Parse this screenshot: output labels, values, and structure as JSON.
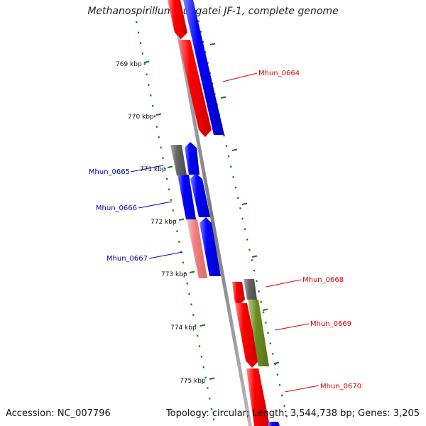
{
  "title": "Methanospirillum hungatei JF-1, complete genome",
  "accession": "Accession: NC_007796",
  "summary": "Topology: circular; Length: 3,544,738 bp; Genes: 3,205",
  "colors": {
    "forward": "#ff0000",
    "reverse": "#0000ff",
    "backbone": "#808080",
    "ruler": "#1a7a1a",
    "pseudo": "#f08080",
    "other": "#6b8e23",
    "gray_gene": "#666666"
  },
  "ruler_labels": [
    "769 kbp",
    "770 kbp",
    "771 kbp",
    "772 kbp",
    "773 kbp",
    "774 kbp",
    "775 kbp"
  ],
  "gene_labels": [
    {
      "id": "mhun_0664",
      "text": "Mhun_0664",
      "color": "#dd0000"
    },
    {
      "id": "mhun_0665",
      "text": "Mhun_0665",
      "color": "#0000bb"
    },
    {
      "id": "mhun_0666",
      "text": "Mhun_0666",
      "color": "#0000bb"
    },
    {
      "id": "mhun_0667",
      "text": "Mhun_0667",
      "color": "#0000bb"
    },
    {
      "id": "mhun_0668",
      "text": "Mhun_0668",
      "color": "#dd0000"
    },
    {
      "id": "mhun_0669",
      "text": "Mhun_0669",
      "color": "#dd0000"
    },
    {
      "id": "mhun_0670",
      "text": "Mhun_0670",
      "color": "#dd0000"
    }
  ]
}
